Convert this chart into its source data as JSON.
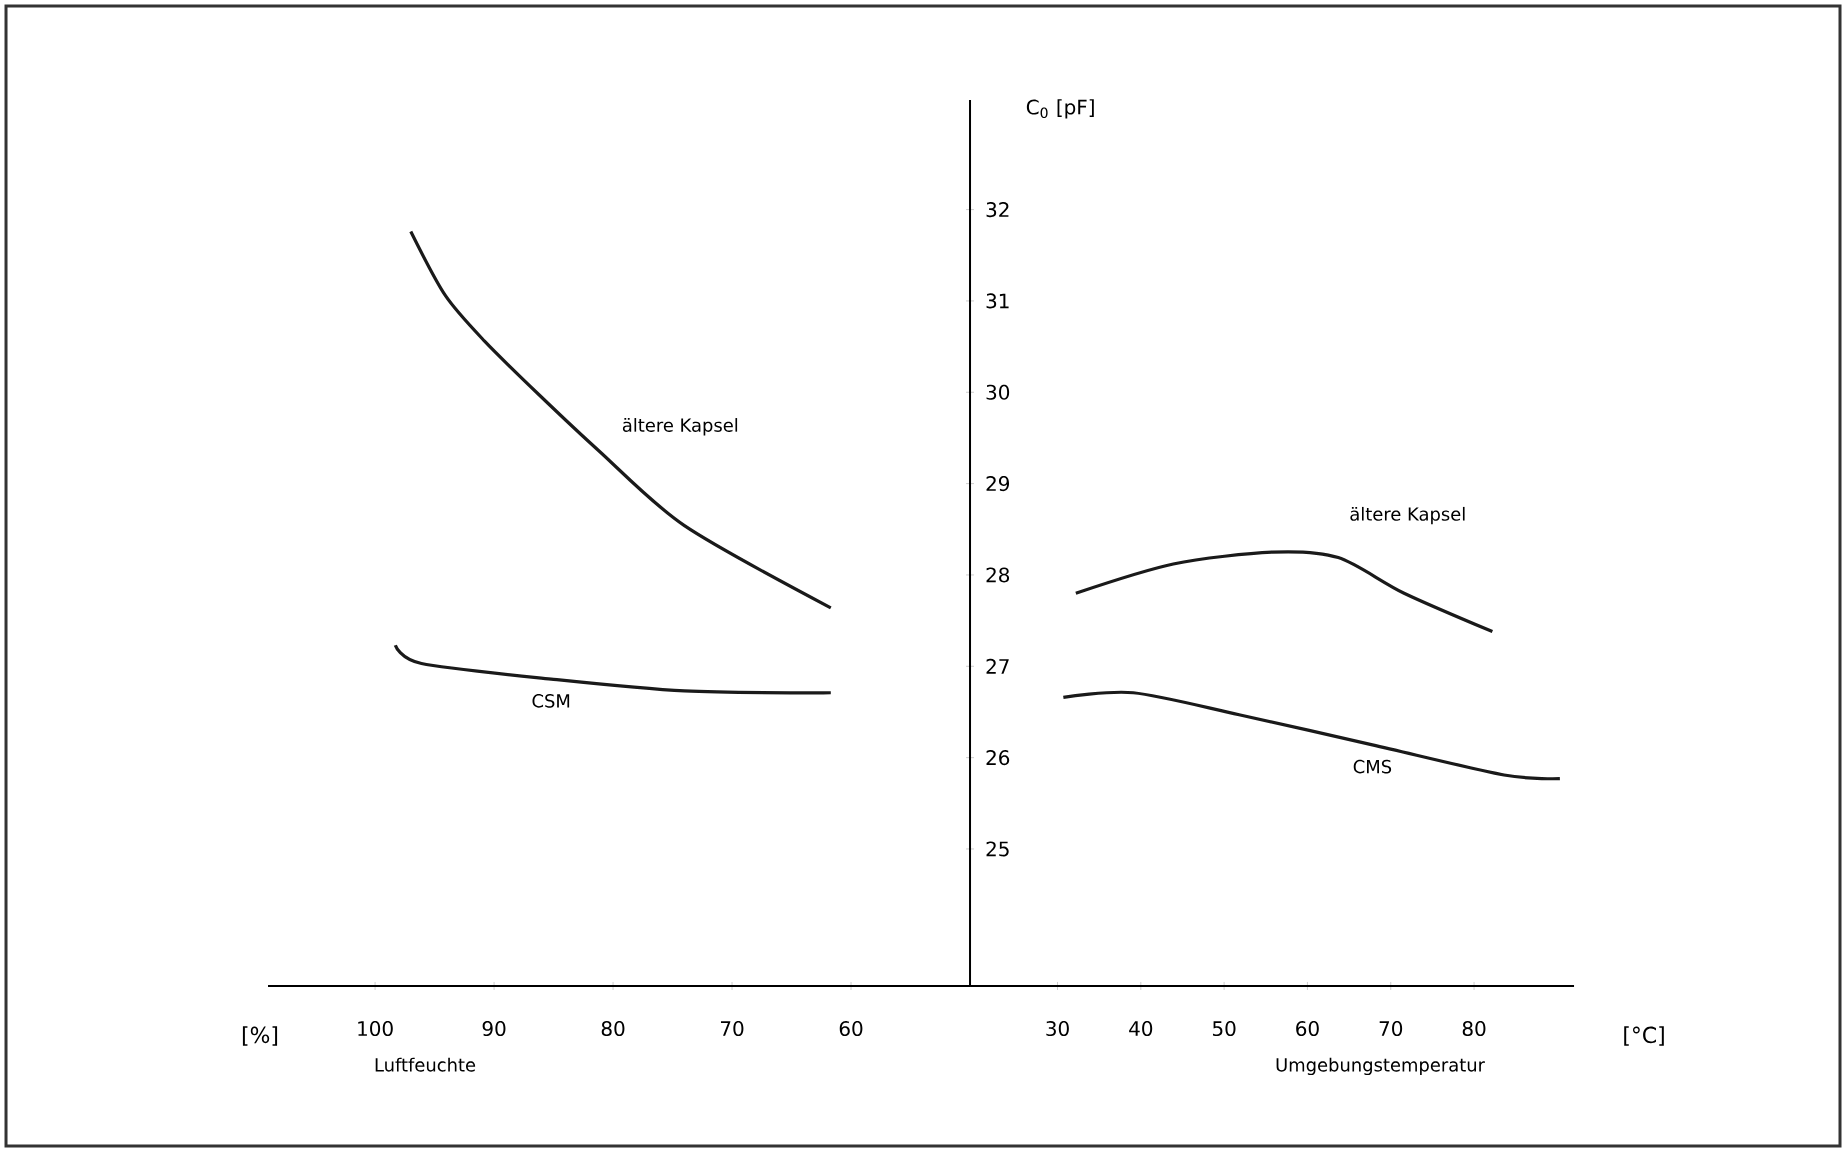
{
  "chart_data": [
    {
      "type": "line",
      "xlabel": "Luftfeuchte",
      "annotations": [
        "[%]"
      ],
      "xlim": [
        109,
        50
      ],
      "xticks": [
        100,
        90,
        80,
        70,
        60
      ],
      "ylim": [
        23.5,
        33.2
      ],
      "yticks": [
        25,
        26,
        27,
        28,
        29,
        30,
        31,
        32
      ],
      "tick_labels": "x",
      "marker": "none",
      "line_style": "solid",
      "grid": false,
      "legend": false,
      "series": [
        {
          "name": "ältere Kapsel",
          "color": "#1a1a1a",
          "x": [
            97.0,
            94.1,
            90.8,
            86.2,
            81.2,
            74.0,
            61.7
          ],
          "values": [
            31.76,
            31.06,
            30.56,
            29.97,
            29.36,
            28.54,
            27.64
          ]
        },
        {
          "name": "CSM",
          "color": "#1a1a1a",
          "x": [
            98.3,
            96.1,
            85.2,
            74.0,
            61.7
          ],
          "values": [
            27.23,
            27.03,
            26.86,
            26.73,
            26.71
          ]
        }
      ]
    },
    {
      "type": "line",
      "xlabel": "Umgebungstemperatur",
      "ylabel": "C$_{0}$ [pF]",
      "annotations": [
        "[°C]"
      ],
      "xlim": [
        19.5,
        92
      ],
      "xticks": [
        30,
        40,
        50,
        60,
        70,
        80
      ],
      "ylim": [
        23.5,
        33.2
      ],
      "yticks": [
        25,
        26,
        27,
        28,
        29,
        30,
        31,
        32
      ],
      "marker": "none",
      "line_style": "solid",
      "grid": false,
      "legend": false,
      "series": [
        {
          "name": "ältere Kapsel",
          "color": "#1a1a1a",
          "x": [
            32.2,
            43.9,
            55.8,
            63.7,
            71.6,
            82.2
          ],
          "values": [
            27.8,
            28.12,
            28.25,
            28.19,
            27.8,
            27.38
          ]
        },
        {
          "name": "CMS",
          "color": "#1a1a1a",
          "x": [
            30.7,
            39.1,
            51.8,
            67.8,
            83.6,
            90.3
          ],
          "values": [
            26.66,
            26.71,
            26.47,
            26.14,
            25.81,
            25.77
          ]
        }
      ]
    }
  ]
}
